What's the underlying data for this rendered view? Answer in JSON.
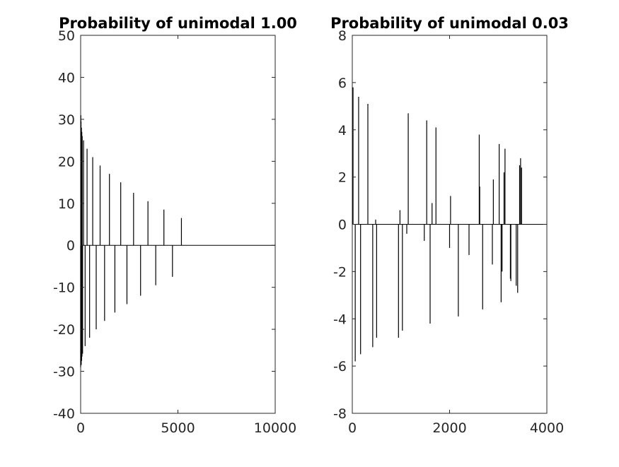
{
  "chart_data": [
    {
      "type": "bar",
      "title": "Probability of unimodal 1.00",
      "xlabel": "",
      "ylabel": "",
      "xlim": [
        0,
        10000
      ],
      "ylim": [
        -40,
        50
      ],
      "xticks": [
        "0",
        "5000",
        "10000"
      ],
      "yticks": [
        "-40",
        "-30",
        "-20",
        "-10",
        "0",
        "10",
        "20",
        "30",
        "40",
        "50"
      ],
      "grid": false,
      "x": [
        0,
        10,
        20,
        30,
        40,
        50,
        60,
        70,
        80,
        100,
        150,
        230,
        330,
        460,
        620,
        800,
        1000,
        1230,
        1480,
        1760,
        2060,
        2380,
        2720,
        3080,
        3460,
        3860,
        4280,
        4720,
        5180
      ],
      "values": [
        -29,
        31,
        29.5,
        -28.5,
        28,
        -27.5,
        27,
        -26.5,
        26,
        -25.8,
        25,
        -24,
        23,
        -22,
        21,
        -20,
        19,
        -18,
        17,
        -16,
        15,
        -14,
        12.5,
        -12,
        10.5,
        -9.5,
        8.5,
        -7.5,
        6.5
      ]
    },
    {
      "type": "bar",
      "title": "Probability of unimodal 0.03",
      "xlabel": "",
      "ylabel": "",
      "xlim": [
        0,
        4000
      ],
      "ylim": [
        -8,
        8
      ],
      "xticks": [
        "0",
        "2000",
        "4000"
      ],
      "yticks": [
        "-8",
        "-6",
        "-4",
        "-2",
        "0",
        "2",
        "4",
        "6",
        "8"
      ],
      "grid": false,
      "x": [
        15,
        60,
        130,
        170,
        320,
        420,
        480,
        500,
        950,
        980,
        1030,
        1120,
        1150,
        1480,
        1530,
        1600,
        1640,
        1720,
        2000,
        2020,
        2180,
        2400,
        2610,
        2620,
        2680,
        2880,
        2900,
        3020,
        3060,
        3080,
        3120,
        3140,
        3250,
        3260,
        3370,
        3400,
        3440,
        3460,
        3480
      ],
      "values": [
        5.8,
        -5.8,
        5.4,
        -5.5,
        5.1,
        -5.2,
        0.2,
        -4.8,
        -4.8,
        0.6,
        -4.5,
        -0.4,
        4.7,
        -0.7,
        4.4,
        -4.2,
        0.9,
        4.1,
        -1.0,
        1.2,
        -3.9,
        -1.3,
        3.8,
        1.6,
        -3.6,
        -1.7,
        1.9,
        3.4,
        -3.3,
        -2.0,
        2.2,
        3.2,
        -2.3,
        -2.4,
        -2.6,
        -2.9,
        2.5,
        2.8,
        2.4
      ]
    }
  ]
}
